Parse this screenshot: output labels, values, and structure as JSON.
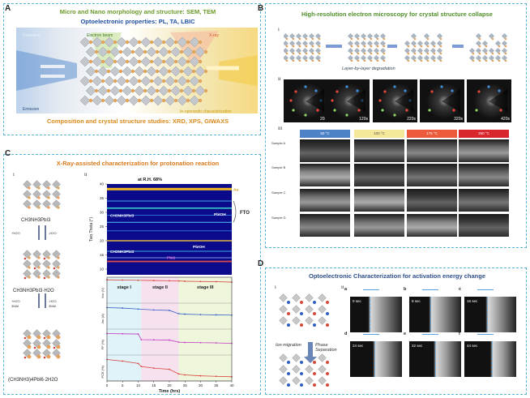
{
  "panel_a": {
    "label": "A",
    "line1": "Micro and Nano morphology and structure: SEM, TEM",
    "line2": "Optoelectronic properties: PL, TA, LBIC",
    "excitation": "Excitation",
    "electron_beam": "Electron beam",
    "xray": "X-ray",
    "emission": "Emission",
    "in_operando": "In-operando characterization",
    "bottom": "Composition and crystal structure studies: XRD, XPS, GIWAXS"
  },
  "panel_b": {
    "label": "B",
    "title": "High-resolution electron microscopy for crystal structure collapse",
    "sub_i": "i",
    "sub_ii": "ii",
    "sub_iii": "iii",
    "caption_i": "Layer-by-layer degradation",
    "times": [
      "20s",
      "120s",
      "220s",
      "320s",
      "420s"
    ],
    "temps": [
      "50 °C",
      "100 °C",
      "175 °C",
      "250 °C"
    ],
    "temp_colors": [
      "#4d82c7",
      "#f5e89a",
      "#ec5a3c",
      "#d9272e"
    ],
    "samples": [
      "Sample A",
      "Sample B",
      "Sample C",
      "Sample D"
    ]
  },
  "panel_c": {
    "label": "C",
    "title": "X-Ray-assisted characterization for protonation reaction",
    "sub_i": "i",
    "sub_ii": "ii",
    "formula1": "CH3NH3PbI3",
    "formula2": "CH3NH3PbI3·H2O",
    "formula3": "(CH3NH3)4PbI6·2H2O",
    "arrow1_left": "+H2O",
    "arrow1_right": "-H2O",
    "arrow2_left": "+H2O",
    "arrow2_left2": "3MAI",
    "arrow2_right": "-H2O",
    "arrow2_right2": "3MAI",
    "heatmap_title": "at R.H. 68%",
    "ylabel": "Two Theta (°)",
    "yticks": [
      "10",
      "15",
      "20",
      "25",
      "30",
      "35",
      "40"
    ],
    "labels": [
      "Au",
      "PbIOH",
      "CH3NH3PbI3",
      "PbIOH",
      "CH3NH3PbI3",
      "PbI2"
    ],
    "fto": "FTO",
    "stages": [
      "stage I",
      "stage II",
      "stage III"
    ],
    "row_labels": [
      "Voc (V)",
      "Jsc (A)",
      "FF (%)",
      "PCE (%)"
    ],
    "xlabel": "Time (hrs)"
  },
  "panel_d": {
    "label": "D",
    "title": "Optoelectronic Characterization for activation energy change",
    "sub_i": "i",
    "sub_ii": "ii",
    "ion_migration": "Ion migration",
    "phase_separation": "Phase Separation",
    "frames": [
      {
        "letter": "a",
        "time": "0 sec"
      },
      {
        "letter": "b",
        "time": "8 sec"
      },
      {
        "letter": "c",
        "time": "16 sec"
      },
      {
        "letter": "d",
        "time": "24 sec"
      },
      {
        "letter": "e",
        "time": "32 sec"
      },
      {
        "letter": "f",
        "time": "44 sec"
      }
    ]
  },
  "chart_data": [
    {
      "type": "line",
      "title": "",
      "xlabel": "Time (hrs)",
      "x_ticks": [
        0,
        5,
        10,
        15,
        20,
        25,
        30,
        35,
        40
      ],
      "xlim": [
        0,
        40
      ],
      "stages": [
        {
          "name": "stage I",
          "range": [
            0,
            11
          ]
        },
        {
          "name": "stage II",
          "range": [
            11,
            23
          ]
        },
        {
          "name": "stage III",
          "range": [
            23,
            40
          ]
        }
      ],
      "series": [
        {
          "name": "Voc (V)",
          "x": [
            0,
            5,
            10,
            15,
            20,
            23,
            25,
            30,
            35,
            40
          ],
          "values": [
            1.0,
            0.99,
            0.98,
            0.97,
            0.96,
            0.95,
            0.94,
            0.93,
            0.92,
            0.9
          ]
        },
        {
          "name": "Jsc (A)",
          "x": [
            0,
            5,
            10,
            15,
            20,
            23,
            25,
            30,
            35,
            40
          ],
          "values": [
            0.92,
            0.9,
            0.86,
            0.82,
            0.8,
            0.66,
            0.64,
            0.62,
            0.61,
            0.6
          ]
        },
        {
          "name": "FF (%)",
          "x": [
            0,
            5,
            10,
            11,
            15,
            20,
            23,
            25,
            30,
            35,
            40
          ],
          "values": [
            0.92,
            0.91,
            0.9,
            0.66,
            0.65,
            0.64,
            0.55,
            0.54,
            0.53,
            0.52,
            0.5
          ]
        },
        {
          "name": "PCE (%)",
          "x": [
            0,
            5,
            10,
            11,
            15,
            20,
            23,
            25,
            30,
            35,
            40
          ],
          "values": [
            0.92,
            0.85,
            0.75,
            0.62,
            0.55,
            0.5,
            0.3,
            0.26,
            0.22,
            0.2,
            0.18
          ]
        }
      ]
    }
  ]
}
